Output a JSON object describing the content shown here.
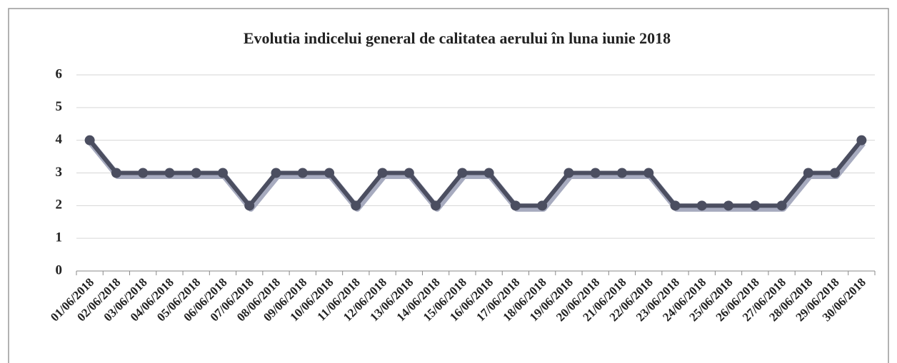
{
  "chart_data": {
    "type": "line",
    "title": "Evolutia indicelui general de calitatea aerului în luna iunie 2018",
    "categories": [
      "01/06/2018",
      "02/06/2018",
      "03/06/2018",
      "04/06/2018",
      "05/06/2018",
      "06/06/2018",
      "07/06/2018",
      "08/06/2018",
      "09/06/2018",
      "10/06/2018",
      "11/06/2018",
      "12/06/2018",
      "13/06/2018",
      "14/06/2018",
      "15/06/2018",
      "16/06/2018",
      "17/06/2018",
      "18/06/2018",
      "19/06/2018",
      "20/06/2018",
      "21/06/2018",
      "22/06/2018",
      "23/06/2018",
      "24/06/2018",
      "25/06/2018",
      "26/06/2018",
      "27/06/2018",
      "28/06/2018",
      "29/06/2018",
      "30/06/2018"
    ],
    "values": [
      4,
      3,
      3,
      3,
      3,
      3,
      2,
      3,
      3,
      3,
      2,
      3,
      3,
      2,
      3,
      3,
      2,
      2,
      3,
      3,
      3,
      3,
      2,
      2,
      2,
      2,
      2,
      3,
      3,
      4
    ],
    "color": "#4b4e60",
    "ylim": [
      0,
      6
    ],
    "yticks": [
      0,
      1,
      2,
      3,
      4,
      5,
      6
    ],
    "grid": true
  }
}
